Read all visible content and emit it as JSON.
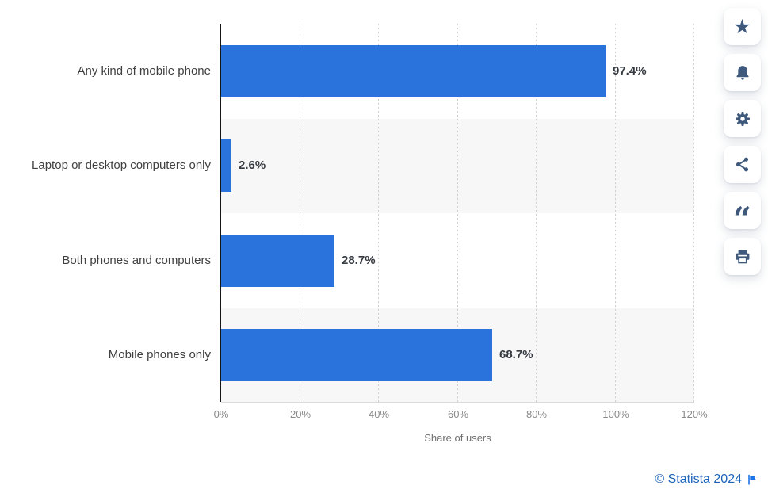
{
  "chart_data": {
    "type": "bar",
    "orientation": "horizontal",
    "title": "",
    "categories": [
      "Any kind of mobile phone",
      "Laptop or desktop computers only",
      "Both phones and computers",
      "Mobile phones only"
    ],
    "values": [
      97.4,
      2.6,
      28.7,
      68.7
    ],
    "value_labels": [
      "97.4%",
      "2.6%",
      "28.7%",
      "68.7%"
    ],
    "xlabel": "Share of users",
    "ylabel": "",
    "xlim": [
      0,
      120
    ],
    "x_ticks": [
      "0%",
      "20%",
      "40%",
      "60%",
      "80%",
      "100%",
      "120%"
    ],
    "grid": "vertical-dotted",
    "legend": "none",
    "bar_color": "#2b73dc",
    "band_color": "#f7f7f7"
  },
  "toolbar": {
    "buttons": [
      {
        "id": "favorite",
        "icon": "star-icon"
      },
      {
        "id": "alert",
        "icon": "bell-icon"
      },
      {
        "id": "settings",
        "icon": "gear-icon"
      },
      {
        "id": "share",
        "icon": "share-icon"
      },
      {
        "id": "cite",
        "icon": "quote-icon"
      },
      {
        "id": "print",
        "icon": "printer-icon"
      }
    ]
  },
  "footer": {
    "copyright": "© Statista 2024",
    "flag": "flag-icon"
  },
  "colors": {
    "bar": "#2b73dc",
    "band": "#f7f7f7",
    "axis": "#161616",
    "gridline": "#cfcfcf",
    "category_label": "#404040",
    "value_label": "#363b42",
    "tick_label": "#8a8a8a",
    "icon": "#3e597c",
    "credit_link": "#1b64bb",
    "flag": "#1a73e8"
  }
}
